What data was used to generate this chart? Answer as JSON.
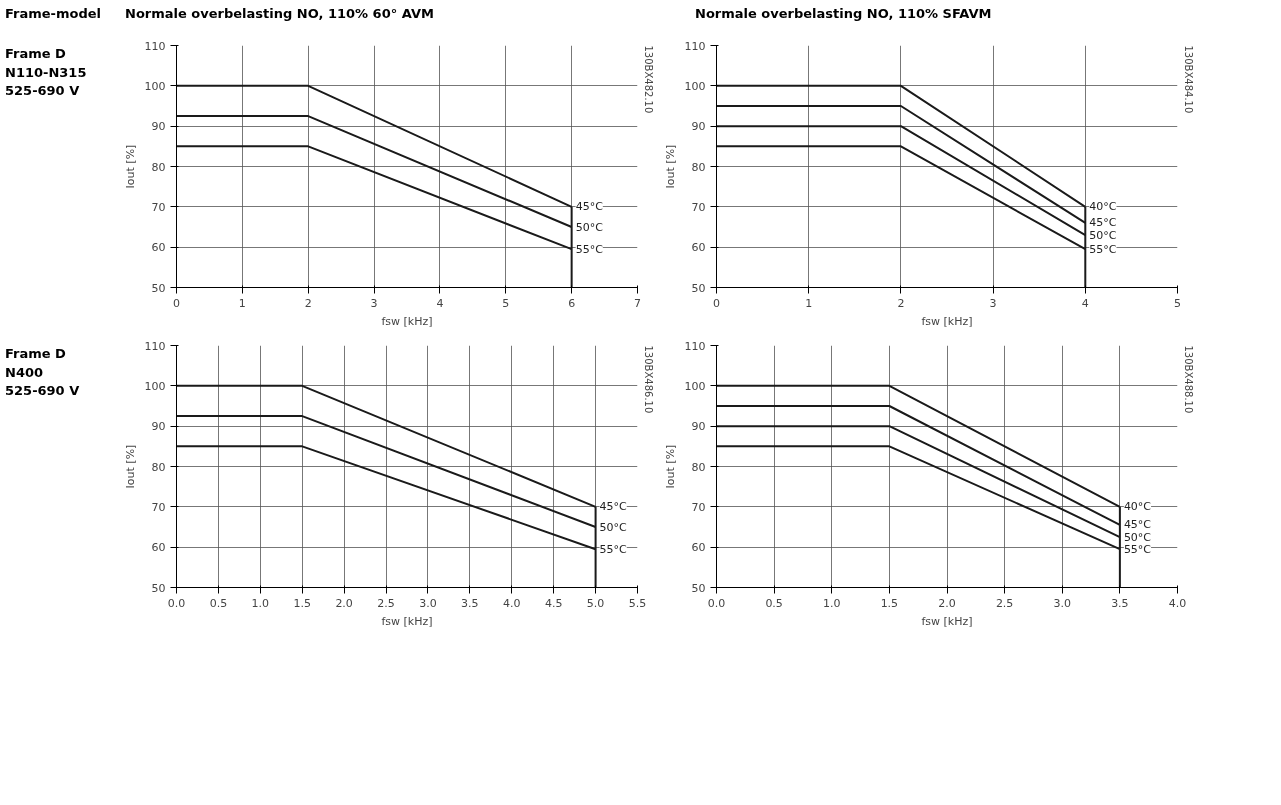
{
  "chart_data": [
    {
      "type": "line",
      "title": "Normale overbelasting NO, 110% 60° AVM",
      "xlabel": "fsw [kHz]",
      "ylabel": "Iout [%]",
      "annotations": [
        "Frame-model",
        "Frame D\nN110-N315\n525-690 V",
        "130BX482.10"
      ],
      "xlim": [
        0,
        7
      ],
      "xticks": [
        0,
        1,
        2,
        3,
        4,
        5,
        6,
        7
      ],
      "ylim": [
        50,
        110
      ],
      "yticks": [
        50,
        60,
        70,
        80,
        90,
        100,
        110
      ],
      "grid": true,
      "series": [
        {
          "name": "45°C",
          "color": "#1a1a1a",
          "x": [
            0,
            2,
            6
          ],
          "values": [
            100,
            100,
            70
          ]
        },
        {
          "name": "50°C",
          "color": "#1a1a1a",
          "x": [
            0,
            2,
            6
          ],
          "values": [
            92.5,
            92.5,
            65
          ]
        },
        {
          "name": "55°C",
          "color": "#1a1a1a",
          "x": [
            0,
            2,
            6
          ],
          "values": [
            85,
            85,
            59.5
          ]
        },
        {
          "color": "#1a1a1a",
          "x": [
            6,
            6
          ],
          "values": [
            70,
            50
          ]
        }
      ]
    },
    {
      "type": "line",
      "title": "Normale overbelasting NO, 110% SFAVM",
      "xlabel": "fsw [kHz]",
      "ylabel": "Iout [%]",
      "annotations": [
        "130BX484.10"
      ],
      "xlim": [
        0,
        5
      ],
      "xticks": [
        0,
        1,
        2,
        3,
        4,
        5
      ],
      "ylim": [
        50,
        110
      ],
      "yticks": [
        50,
        60,
        70,
        80,
        90,
        100,
        110
      ],
      "grid": true,
      "series": [
        {
          "name": "40°C",
          "color": "#1a1a1a",
          "x": [
            0,
            2,
            4
          ],
          "values": [
            100,
            100,
            70
          ]
        },
        {
          "name": "45°C",
          "color": "#1a1a1a",
          "x": [
            0,
            2,
            4
          ],
          "values": [
            95,
            95,
            66
          ]
        },
        {
          "name": "50°C",
          "color": "#1a1a1a",
          "x": [
            0,
            2,
            4
          ],
          "values": [
            90,
            90,
            63
          ]
        },
        {
          "name": "55°C",
          "color": "#1a1a1a",
          "x": [
            0,
            2,
            4
          ],
          "values": [
            85,
            85,
            59.5
          ]
        },
        {
          "color": "#1a1a1a",
          "x": [
            4,
            4
          ],
          "values": [
            70,
            50
          ]
        }
      ]
    },
    {
      "type": "line",
      "xlabel": "fsw [kHz]",
      "ylabel": "Iout [%]",
      "annotations": [
        "Frame D\nN400\n525-690 V",
        "130BX486.10"
      ],
      "xlim": [
        0,
        5.5
      ],
      "xticks": [
        {
          "value": 0,
          "label": "0.0"
        },
        0.5,
        {
          "value": 1,
          "label": "1.0"
        },
        1.5,
        {
          "value": 2,
          "label": "2.0"
        },
        2.5,
        {
          "value": 3,
          "label": "3.0"
        },
        3.5,
        {
          "value": 4,
          "label": "4.0"
        },
        4.5,
        {
          "value": 5,
          "label": "5.0"
        },
        5.5
      ],
      "ylim": [
        50,
        110
      ],
      "yticks": [
        50,
        60,
        70,
        80,
        90,
        100,
        110
      ],
      "grid": true,
      "series": [
        {
          "name": "45°C",
          "color": "#1a1a1a",
          "x": [
            0,
            1.5,
            5
          ],
          "values": [
            100,
            100,
            70
          ]
        },
        {
          "name": "50°C",
          "color": "#1a1a1a",
          "x": [
            0,
            1.5,
            5
          ],
          "values": [
            92.5,
            92.5,
            65
          ]
        },
        {
          "name": "55°C",
          "color": "#1a1a1a",
          "x": [
            0,
            1.5,
            5
          ],
          "values": [
            85,
            85,
            59.5
          ]
        },
        {
          "color": "#1a1a1a",
          "x": [
            5,
            5
          ],
          "values": [
            70,
            50
          ]
        }
      ]
    },
    {
      "type": "line",
      "xlabel": "fsw [kHz]",
      "ylabel": "Iout [%]",
      "annotations": [
        "130BX488.10"
      ],
      "xlim": [
        0,
        4
      ],
      "xticks": [
        {
          "value": 0,
          "label": "0.0"
        },
        0.5,
        {
          "value": 1,
          "label": "1.0"
        },
        1.5,
        {
          "value": 2,
          "label": "2.0"
        },
        2.5,
        {
          "value": 3,
          "label": "3.0"
        },
        3.5,
        {
          "value": 4,
          "label": "4.0"
        }
      ],
      "ylim": [
        50,
        110
      ],
      "yticks": [
        50,
        60,
        70,
        80,
        90,
        100,
        110
      ],
      "grid": true,
      "series": [
        {
          "name": "40°C",
          "color": "#1a1a1a",
          "x": [
            0,
            1.5,
            3.5
          ],
          "values": [
            100,
            100,
            70
          ]
        },
        {
          "name": "45°C",
          "color": "#1a1a1a",
          "x": [
            0,
            1.5,
            3.5
          ],
          "values": [
            95,
            95,
            65.5
          ]
        },
        {
          "name": "50°C",
          "color": "#1a1a1a",
          "x": [
            0,
            1.5,
            3.5
          ],
          "values": [
            90,
            90,
            62.5
          ]
        },
        {
          "name": "55°C",
          "color": "#1a1a1a",
          "x": [
            0,
            1.5,
            3.5
          ],
          "values": [
            85,
            85,
            59.5
          ]
        },
        {
          "color": "#1a1a1a",
          "x": [
            3.5,
            3.5
          ],
          "values": [
            70,
            50
          ]
        }
      ]
    }
  ]
}
